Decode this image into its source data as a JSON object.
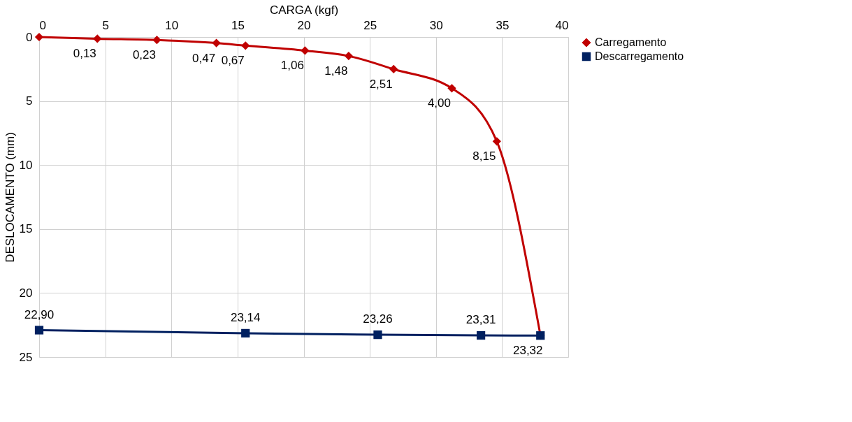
{
  "chart_data": {
    "type": "line",
    "xlabel": "CARGA (kgf)",
    "ylabel": "DESLOCAMENTO (mm)",
    "xlim": [
      0,
      40
    ],
    "xticks": [
      0,
      5,
      10,
      15,
      20,
      25,
      30,
      35,
      40
    ],
    "ylim": [
      25,
      0
    ],
    "yticks": [
      0,
      5,
      10,
      15,
      20,
      25
    ],
    "grid": true,
    "legend": "right",
    "line_style": "solid",
    "series": [
      {
        "name": "Carregamento",
        "color": "#c00000",
        "marker": "diamond",
        "x": [
          0,
          4.4,
          8.9,
          13.4,
          15.6,
          20.1,
          23.4,
          26.8,
          31.2,
          34.6,
          37.9
        ],
        "values": [
          0,
          0.13,
          0.23,
          0.47,
          0.67,
          1.06,
          1.48,
          2.51,
          4.0,
          8.15,
          23.32
        ],
        "value_labels": [
          null,
          "0,13",
          "0,23",
          "0,47",
          "0,67",
          "1,06",
          "1,48",
          "2,51",
          "4,00",
          "8,15",
          null
        ]
      },
      {
        "name": "Descarregamento",
        "color": "#002060",
        "marker": "square",
        "x": [
          0,
          15.6,
          25.6,
          33.4,
          37.9
        ],
        "values": [
          22.9,
          23.14,
          23.26,
          23.31,
          23.32
        ],
        "value_labels": [
          "22,90",
          "23,14",
          "23,26",
          "23,31",
          "23,32"
        ]
      }
    ]
  }
}
